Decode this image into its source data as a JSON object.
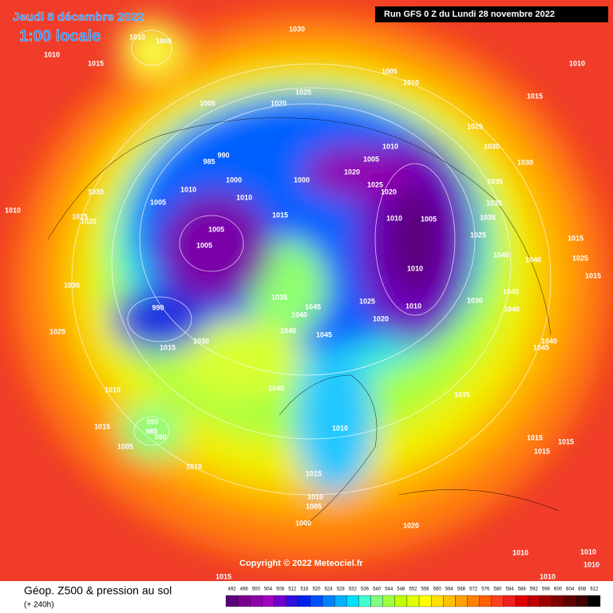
{
  "header": {
    "date": "Jeudi 8 décembre 2022",
    "time": "1:00 locale",
    "run": "Run GFS 0 Z du Lundi 28 novembre 2022"
  },
  "copyright": "Copyright © 2022 Meteociel.fr",
  "legend": {
    "title": "Géop. Z500 & pression au sol",
    "lead": "(+ 240h)",
    "levels": [
      492,
      496,
      500,
      504,
      508,
      512,
      516,
      520,
      524,
      528,
      532,
      536,
      540,
      544,
      548,
      552,
      556,
      560,
      564,
      568,
      572,
      576,
      580,
      584,
      588,
      592,
      596,
      600,
      604,
      608,
      612
    ],
    "colors": [
      "#5c007a",
      "#7a008f",
      "#8e00a8",
      "#a000c0",
      "#7000d0",
      "#3010e0",
      "#0020f0",
      "#0050ff",
      "#0080ff",
      "#00b0ff",
      "#00e0ff",
      "#40ffd0",
      "#80ff80",
      "#a0ff40",
      "#c0ff00",
      "#e0ff00",
      "#ffff00",
      "#ffe000",
      "#ffc000",
      "#ffa000",
      "#ff8000",
      "#ff6000",
      "#ff4020",
      "#f02020",
      "#e00000",
      "#c00000",
      "#a00000",
      "#800000",
      "#600000",
      "#400000",
      "#000000"
    ]
  },
  "isobar_labels": [
    1030,
    1010,
    1015,
    1010,
    1005,
    1010,
    1005,
    1010,
    1025,
    1020,
    1005,
    1015,
    1025,
    1030,
    1010,
    990,
    985,
    1005,
    1030,
    1020,
    1000,
    1000,
    1010,
    1025,
    1020,
    1035,
    1030,
    1010,
    1005,
    1035,
    1010,
    1025,
    1020,
    1015,
    1010,
    1005,
    1005,
    1035,
    1025,
    1015,
    1005,
    1040,
    1040,
    1025,
    1010,
    1015,
    1030,
    1035,
    1045,
    990,
    1045,
    1025,
    1010,
    1030,
    1040,
    1040,
    1020,
    1025,
    1040,
    1045,
    1030,
    1015,
    1040,
    1045,
    1010,
    1045,
    1035,
    1015,
    995,
    985,
    1005,
    990,
    1010,
    1015,
    1015,
    1015,
    1010,
    1015,
    1010,
    1005,
    1000,
    1020,
    1010,
    1010,
    1010,
    1010,
    1015
  ]
}
